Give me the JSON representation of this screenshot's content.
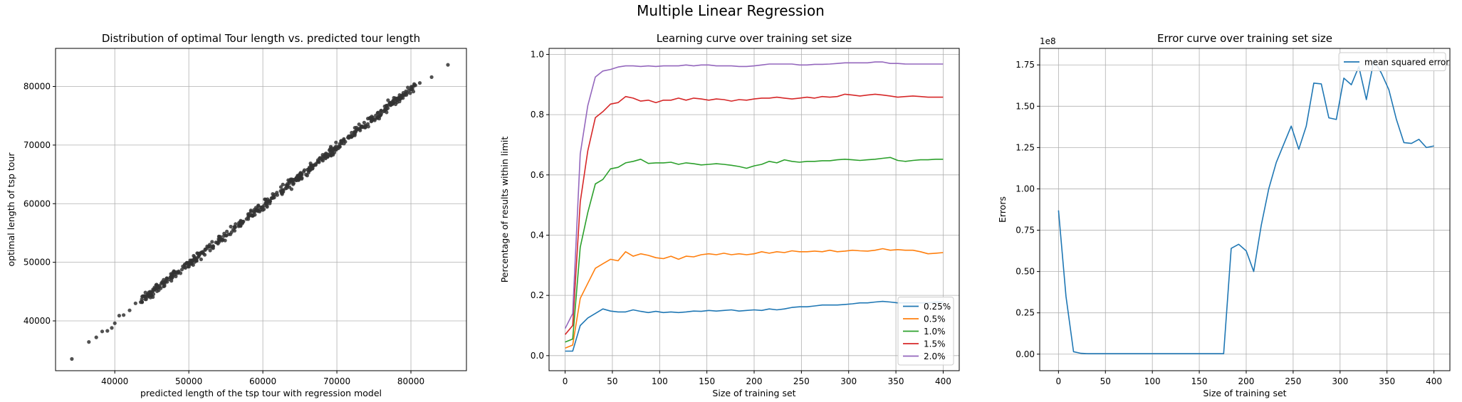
{
  "figure": {
    "suptitle": "Multiple Linear Regression"
  },
  "chart_data": [
    {
      "type": "scatter",
      "title": "Distribution of optimal Tour length vs. predicted tour length",
      "xlabel": "predicted length of the tsp tour with regression model",
      "ylabel": "optimal length of tsp tour",
      "xlim": [
        32000,
        87500
      ],
      "ylim": [
        31500,
        86500
      ],
      "xticks": [
        40000,
        50000,
        60000,
        70000,
        80000
      ],
      "yticks": [
        40000,
        50000,
        60000,
        70000,
        80000
      ],
      "xticklabels": [
        "40000",
        "50000",
        "60000",
        "70000",
        "80000"
      ],
      "yticklabels": [
        "40000",
        "50000",
        "60000",
        "70000",
        "80000"
      ],
      "grid": true,
      "color": "#333333",
      "sample_points": [
        [
          34200,
          33500
        ],
        [
          36500,
          36400
        ],
        [
          37500,
          37200
        ],
        [
          38300,
          38200
        ],
        [
          39000,
          38300
        ],
        [
          39600,
          38800
        ],
        [
          40000,
          39600
        ],
        [
          40600,
          40900
        ],
        [
          41200,
          41000
        ],
        [
          42000,
          41800
        ],
        [
          42800,
          43000
        ],
        [
          43500,
          43200
        ],
        [
          85000,
          83700
        ],
        [
          82800,
          81600
        ],
        [
          81200,
          80600
        ],
        [
          80600,
          80200
        ]
      ],
      "band": {
        "x_from": 43500,
        "x_to": 80500,
        "slope": 0.995,
        "intercept": 0,
        "spread": 900
      }
    },
    {
      "type": "line",
      "title": "Learning curve over training set size",
      "xlabel": "Size of training set",
      "ylabel": "Percentage of results within limit",
      "xlim": [
        -17,
        417
      ],
      "ylim": [
        -0.05,
        1.02
      ],
      "xticks": [
        0,
        50,
        100,
        150,
        200,
        250,
        300,
        350,
        400
      ],
      "yticks": [
        0.0,
        0.2,
        0.4,
        0.6,
        0.8,
        1.0
      ],
      "xticklabels": [
        "0",
        "50",
        "100",
        "150",
        "200",
        "250",
        "300",
        "350",
        "400"
      ],
      "yticklabels": [
        "0.0",
        "0.2",
        "0.4",
        "0.6",
        "0.8",
        "1.0"
      ],
      "grid": true,
      "legend": "lower-right",
      "x": [
        0,
        8,
        16,
        24,
        32,
        40,
        48,
        56,
        64,
        72,
        80,
        88,
        96,
        104,
        112,
        120,
        128,
        136,
        144,
        152,
        160,
        168,
        176,
        184,
        192,
        200,
        208,
        216,
        224,
        232,
        240,
        248,
        256,
        264,
        272,
        280,
        288,
        296,
        304,
        312,
        320,
        328,
        336,
        344,
        352,
        360,
        368,
        376,
        384,
        392,
        400
      ],
      "series": [
        {
          "name": "0.25%",
          "color": "#1f77b4",
          "values": [
            0.015,
            0.015,
            0.1,
            0.125,
            0.14,
            0.155,
            0.148,
            0.145,
            0.145,
            0.152,
            0.147,
            0.143,
            0.147,
            0.143,
            0.145,
            0.143,
            0.145,
            0.148,
            0.147,
            0.15,
            0.148,
            0.15,
            0.152,
            0.148,
            0.15,
            0.152,
            0.15,
            0.155,
            0.152,
            0.155,
            0.16,
            0.162,
            0.162,
            0.165,
            0.168,
            0.168,
            0.168,
            0.17,
            0.172,
            0.175,
            0.175,
            0.178,
            0.18,
            0.178,
            0.175,
            0.175,
            0.175,
            0.175,
            0.175,
            0.178,
            0.178
          ]
        },
        {
          "name": "0.5%",
          "color": "#ff7f0e",
          "values": [
            0.025,
            0.035,
            0.19,
            0.24,
            0.29,
            0.305,
            0.32,
            0.315,
            0.345,
            0.33,
            0.338,
            0.333,
            0.325,
            0.322,
            0.33,
            0.32,
            0.33,
            0.328,
            0.335,
            0.338,
            0.335,
            0.34,
            0.335,
            0.338,
            0.335,
            0.338,
            0.345,
            0.34,
            0.345,
            0.342,
            0.348,
            0.345,
            0.345,
            0.347,
            0.345,
            0.35,
            0.345,
            0.347,
            0.35,
            0.348,
            0.347,
            0.35,
            0.355,
            0.35,
            0.352,
            0.35,
            0.35,
            0.345,
            0.338,
            0.34,
            0.342
          ]
        },
        {
          "name": "1.0%",
          "color": "#2ca02c",
          "values": [
            0.045,
            0.055,
            0.36,
            0.475,
            0.57,
            0.585,
            0.62,
            0.625,
            0.64,
            0.645,
            0.652,
            0.638,
            0.64,
            0.64,
            0.642,
            0.635,
            0.64,
            0.637,
            0.633,
            0.635,
            0.637,
            0.635,
            0.632,
            0.628,
            0.622,
            0.63,
            0.635,
            0.645,
            0.64,
            0.65,
            0.645,
            0.642,
            0.645,
            0.645,
            0.647,
            0.647,
            0.65,
            0.652,
            0.65,
            0.648,
            0.65,
            0.652,
            0.655,
            0.658,
            0.648,
            0.645,
            0.648,
            0.65,
            0.65,
            0.652,
            0.652
          ]
        },
        {
          "name": "1.5%",
          "color": "#d62728",
          "values": [
            0.07,
            0.1,
            0.51,
            0.68,
            0.79,
            0.81,
            0.835,
            0.84,
            0.86,
            0.855,
            0.845,
            0.848,
            0.84,
            0.848,
            0.848,
            0.855,
            0.848,
            0.855,
            0.852,
            0.848,
            0.852,
            0.85,
            0.845,
            0.85,
            0.848,
            0.852,
            0.855,
            0.855,
            0.858,
            0.855,
            0.852,
            0.855,
            0.858,
            0.855,
            0.86,
            0.858,
            0.86,
            0.868,
            0.865,
            0.862,
            0.865,
            0.868,
            0.865,
            0.862,
            0.858,
            0.86,
            0.862,
            0.86,
            0.858,
            0.858,
            0.858
          ]
        },
        {
          "name": "2.0%",
          "color": "#9467bd",
          "values": [
            0.09,
            0.14,
            0.67,
            0.83,
            0.925,
            0.945,
            0.95,
            0.958,
            0.962,
            0.962,
            0.96,
            0.962,
            0.96,
            0.962,
            0.962,
            0.962,
            0.965,
            0.962,
            0.965,
            0.965,
            0.962,
            0.962,
            0.962,
            0.96,
            0.96,
            0.962,
            0.965,
            0.968,
            0.968,
            0.968,
            0.968,
            0.965,
            0.965,
            0.967,
            0.967,
            0.968,
            0.97,
            0.972,
            0.972,
            0.972,
            0.972,
            0.975,
            0.975,
            0.97,
            0.97,
            0.968,
            0.968,
            0.968,
            0.968,
            0.968,
            0.968
          ]
        }
      ]
    },
    {
      "type": "line",
      "title": "Error curve over training set size",
      "xlabel": "Size of training set",
      "ylabel": "Errors",
      "offset_text": "1e8",
      "xlim": [
        -20,
        417
      ],
      "ylim": [
        -0.1,
        1.85
      ],
      "xticks": [
        0,
        50,
        100,
        150,
        200,
        250,
        300,
        350,
        400
      ],
      "yticks": [
        0.0,
        0.25,
        0.5,
        0.75,
        1.0,
        1.25,
        1.5,
        1.75
      ],
      "xticklabels": [
        "0",
        "50",
        "100",
        "150",
        "200",
        "250",
        "300",
        "350",
        "400"
      ],
      "yticklabels": [
        "0.00",
        "0.25",
        "0.50",
        "0.75",
        "1.00",
        "1.25",
        "1.50",
        "1.75"
      ],
      "grid": true,
      "legend": "top-right",
      "x": [
        0,
        8,
        16,
        24,
        32,
        40,
        48,
        56,
        64,
        72,
        80,
        88,
        96,
        104,
        112,
        120,
        128,
        136,
        144,
        152,
        160,
        168,
        176,
        184,
        192,
        200,
        208,
        216,
        224,
        232,
        240,
        248,
        256,
        264,
        272,
        280,
        288,
        296,
        304,
        312,
        320,
        328,
        336,
        344,
        352,
        360,
        368,
        376,
        384,
        392,
        400
      ],
      "series": [
        {
          "name": "mean squared error",
          "color": "#1f77b4",
          "values": [
            0.87,
            0.35,
            0.015,
            0.005,
            0.003,
            0.003,
            0.003,
            0.003,
            0.003,
            0.003,
            0.003,
            0.003,
            0.003,
            0.003,
            0.003,
            0.003,
            0.003,
            0.003,
            0.003,
            0.003,
            0.003,
            0.003,
            0.003,
            0.64,
            0.665,
            0.625,
            0.5,
            0.78,
            1.0,
            1.16,
            1.27,
            1.38,
            1.24,
            1.38,
            1.64,
            1.635,
            1.43,
            1.42,
            1.67,
            1.63,
            1.74,
            1.54,
            1.78,
            1.7,
            1.6,
            1.42,
            1.28,
            1.275,
            1.3,
            1.25,
            1.26
          ]
        }
      ]
    }
  ]
}
